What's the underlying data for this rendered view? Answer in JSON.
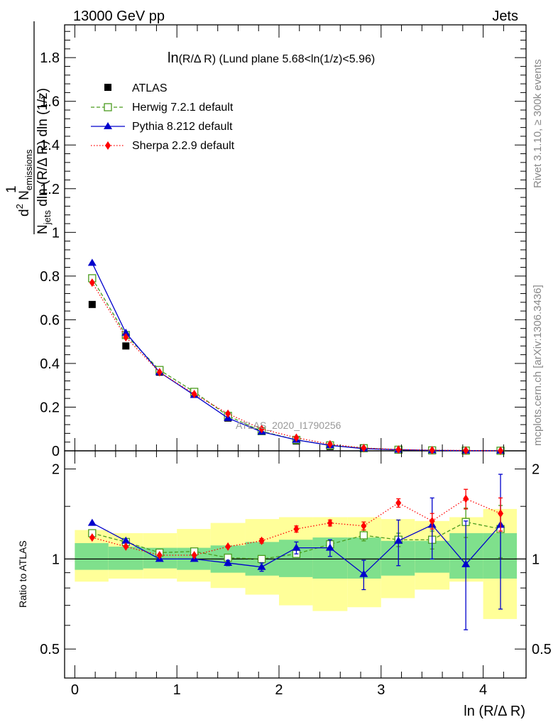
{
  "header": {
    "left": "13000 GeV pp",
    "right": "Jets"
  },
  "side": {
    "rivet": "Rivet 3.1.10, ≥ 300k events",
    "mcplots": "mcplots.cern.ch [arXiv:1306.3436]"
  },
  "plot_title_main": "ln",
  "plot_title_rest": "(R/Δ R) (Lund plane 5.68<ln(1/z)<5.96)",
  "watermark": "ATLAS_2020_I1790256",
  "y_label_top": {
    "one": "1",
    "denominator_n": "N",
    "denominator_sub": "jets",
    "denominator_rest": " dln (R/Δ R) dln (1/z)",
    "numerator": "d",
    "numerator_sup": "2",
    "numerator_n": " N",
    "numerator_sub": "emissions"
  },
  "y_label_bottom": "Ratio to ATLAS",
  "x_label": "ln (R/Δ R)",
  "colors": {
    "atlas": "#000000",
    "herwig": "#4a9c1e",
    "pythia": "#0000cc",
    "sherpa": "#ff0000",
    "band_inner": "#7fe08c",
    "band_outer": "#ffff99"
  },
  "chart_data": [
    {
      "type": "scatter",
      "name": "main",
      "x": [
        0.17,
        0.5,
        0.83,
        1.17,
        1.5,
        1.83,
        2.17,
        2.5,
        2.83,
        3.17,
        3.5,
        3.83,
        4.17
      ],
      "xlim": [
        -0.1,
        4.42
      ],
      "ylim": [
        0,
        1.95
      ],
      "yticks": [
        0,
        0.2,
        0.4,
        0.6,
        0.8,
        1,
        1.2,
        1.4,
        1.6,
        1.8
      ],
      "ytick_labels": [
        "0",
        "0.2",
        "0.4",
        "0.6",
        "0.8",
        "1",
        "1.2",
        "1.4",
        "1.6",
        "1.8"
      ],
      "series": [
        {
          "name": "ATLAS",
          "values": [
            0.67,
            0.48,
            0.36,
            0.26,
            0.15,
            0.09,
            0.045,
            0.02,
            0.01,
            0.004,
            0.002,
            0.001,
            0.0005
          ]
        },
        {
          "name": "Herwig 7.2.1 default",
          "values": [
            0.79,
            0.53,
            0.37,
            0.27,
            0.16,
            0.09,
            0.05,
            0.025,
            0.012,
            0.005,
            0.002,
            0.001,
            0.0005
          ]
        },
        {
          "name": "Pythia 8.212 default",
          "values": [
            0.86,
            0.54,
            0.36,
            0.255,
            0.15,
            0.087,
            0.05,
            0.025,
            0.01,
            0.005,
            0.002,
            0.001,
            0.0005
          ]
        },
        {
          "name": "Sherpa 2.2.9 default",
          "values": [
            0.77,
            0.52,
            0.36,
            0.26,
            0.17,
            0.1,
            0.06,
            0.03,
            0.013,
            0.006,
            0.003,
            0.0015,
            0.0006
          ]
        }
      ]
    },
    {
      "type": "line",
      "name": "ratio",
      "x": [
        0.17,
        0.5,
        0.83,
        1.17,
        1.5,
        1.83,
        2.17,
        2.5,
        2.83,
        3.17,
        3.5,
        3.83,
        4.17
      ],
      "xlim": [
        -0.1,
        4.42
      ],
      "xticks": [
        0,
        1,
        2,
        3,
        4
      ],
      "xtick_labels": [
        "0",
        "1",
        "2",
        "3",
        "4"
      ],
      "ylim": [
        0.4,
        2.3
      ],
      "yscale": "log",
      "ytick_labels": [
        "0.5",
        "1",
        "2"
      ],
      "bin_edges": [
        0,
        0.33,
        0.67,
        1.0,
        1.33,
        1.67,
        2.0,
        2.33,
        2.67,
        3.0,
        3.33,
        3.67,
        4.0,
        4.33
      ],
      "band_inner": {
        "low": [
          0.92,
          0.92,
          0.93,
          0.92,
          0.9,
          0.88,
          0.87,
          0.86,
          0.86,
          0.88,
          0.9,
          0.86,
          0.86
        ],
        "high": [
          1.13,
          1.1,
          1.09,
          1.09,
          1.11,
          1.14,
          1.16,
          1.18,
          1.18,
          1.15,
          1.15,
          1.22,
          1.22
        ]
      },
      "band_outer": {
        "low": [
          0.84,
          0.86,
          0.86,
          0.84,
          0.8,
          0.76,
          0.7,
          0.67,
          0.69,
          0.74,
          0.79,
          0.84,
          0.63
        ],
        "high": [
          1.25,
          1.22,
          1.22,
          1.26,
          1.32,
          1.36,
          1.38,
          1.38,
          1.38,
          1.36,
          1.34,
          1.38,
          1.47
        ]
      },
      "series": [
        {
          "name": "Herwig 7.2.1 default",
          "values": [
            1.22,
            1.14,
            1.05,
            1.06,
            1.01,
            1.0,
            1.04,
            1.12,
            1.2,
            1.16,
            1.16,
            1.33,
            1.26
          ],
          "err": [
            0.01,
            0.01,
            0.01,
            0.01,
            0.01,
            0.02,
            0.02,
            0.03,
            0.05,
            0.06,
            0.08,
            0.15,
            0.25
          ]
        },
        {
          "name": "Pythia 8.212 default",
          "values": [
            1.32,
            1.15,
            1.0,
            1.0,
            0.97,
            0.94,
            1.09,
            1.09,
            0.89,
            1.15,
            1.3,
            0.96,
            1.3
          ],
          "err": [
            0.01,
            0.01,
            0.01,
            0.01,
            0.02,
            0.03,
            0.05,
            0.07,
            0.1,
            0.2,
            0.3,
            0.38,
            0.62
          ]
        },
        {
          "name": "Sherpa 2.2.9 default",
          "values": [
            1.18,
            1.1,
            1.03,
            1.03,
            1.1,
            1.15,
            1.26,
            1.32,
            1.29,
            1.54,
            1.34,
            1.59,
            1.42
          ],
          "err": [
            0.01,
            0.01,
            0.01,
            0.01,
            0.01,
            0.02,
            0.03,
            0.03,
            0.04,
            0.05,
            0.08,
            0.12,
            0.18
          ]
        }
      ]
    }
  ]
}
